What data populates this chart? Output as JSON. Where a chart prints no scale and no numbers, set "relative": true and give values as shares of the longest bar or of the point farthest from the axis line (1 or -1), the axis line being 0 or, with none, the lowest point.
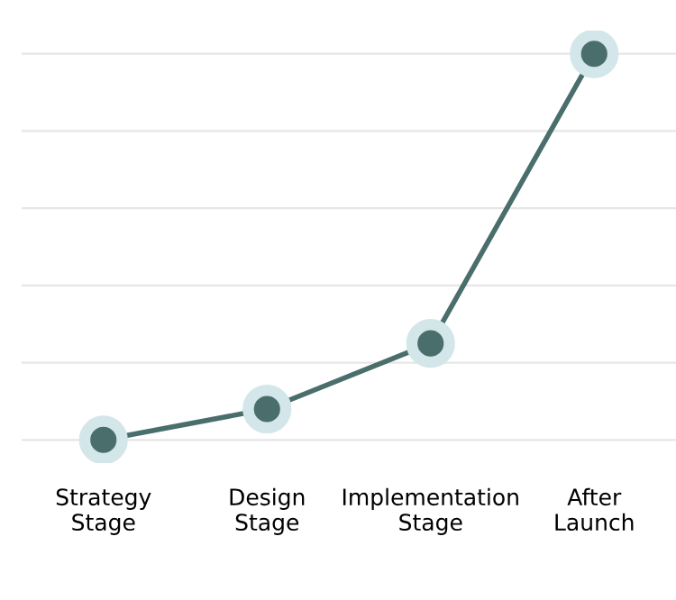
{
  "chart_data": {
    "type": "line",
    "relative": true,
    "categories": [
      "Strategy\nStage",
      "Design\nStage",
      "Implementation\nStage",
      "After\nLaunch"
    ],
    "series": [
      {
        "color": "#4a6e6b",
        "values": [
          0,
          0.08,
          0.25,
          1
        ]
      }
    ],
    "grid": "y",
    "marker": "circle",
    "line_style": "solid"
  }
}
